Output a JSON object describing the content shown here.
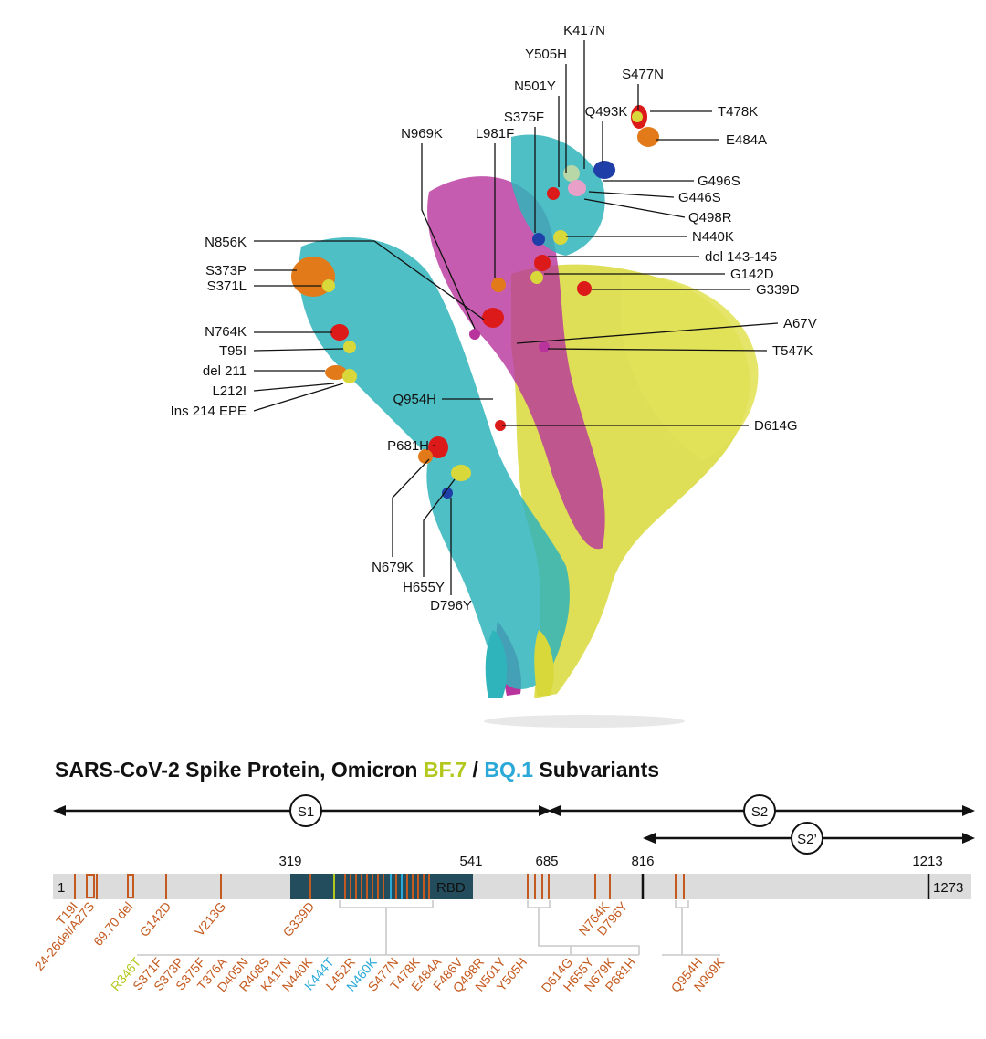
{
  "colors": {
    "bf7": "#b4c71c",
    "bq1": "#2aa8d8",
    "mutation": "#c45a1f",
    "domain_bar": "#dcdcdc",
    "rbd": "#234d5c",
    "cyan_chain": "#2fb4bb",
    "magenta_chain": "#b8339c",
    "yellow_chain": "#d8d83a",
    "red_site": "#dd1a1a",
    "orange_site": "#e27a1a",
    "blue_site": "#1f3ea8",
    "pink_site": "#e8a0c8"
  },
  "structure_labels": [
    "K417N",
    "Y505H",
    "S477N",
    "N501Y",
    "Q493K",
    "T478K",
    "S375F",
    "N969K",
    "L981F",
    "E484A",
    "G496S",
    "G446S",
    "Q498R",
    "N856K",
    "N440K",
    "S373P",
    "del 143-145",
    "S371L",
    "G142D",
    "G339D",
    "N764K",
    "A67V",
    "T95I",
    "T547K",
    "del 211",
    "L212I",
    "Q954H",
    "Ins 214 EPE",
    "D614G",
    "P681H",
    "N679K",
    "H655Y",
    "D796Y"
  ],
  "title": {
    "prefix": "SARS-CoV-2 Spike Protein, Omicron ",
    "bf7": "BF.7",
    "sep": " / ",
    "bq1": "BQ.1",
    "suffix": " Subvariants"
  },
  "domains": {
    "s1": "S1",
    "s2": "S2",
    "s2prime": "S2’",
    "rbd": "RBD"
  },
  "positions": [
    "1",
    "319",
    "541",
    "685",
    "816",
    "1213",
    "1273"
  ],
  "mutations_top": [
    "T19I",
    "24-26del/A27S",
    "69.70 del",
    "G142D",
    "V213G",
    "G339D",
    "N764K",
    "D796Y"
  ],
  "mutations_rbd": [
    {
      "text": "R346T",
      "lineage": "bf7"
    },
    {
      "text": "S371F",
      "lineage": "common"
    },
    {
      "text": "S373P",
      "lineage": "common"
    },
    {
      "text": "S375F",
      "lineage": "common"
    },
    {
      "text": "T376A",
      "lineage": "common"
    },
    {
      "text": "D405N",
      "lineage": "common"
    },
    {
      "text": "R408S",
      "lineage": "common"
    },
    {
      "text": "K417N",
      "lineage": "common"
    },
    {
      "text": "N440K",
      "lineage": "common"
    },
    {
      "text": "K444T",
      "lineage": "bq1"
    },
    {
      "text": "L452R",
      "lineage": "common"
    },
    {
      "text": "N460K",
      "lineage": "bq1"
    },
    {
      "text": "S477N",
      "lineage": "common"
    },
    {
      "text": "T478K",
      "lineage": "common"
    },
    {
      "text": "E484A",
      "lineage": "common"
    },
    {
      "text": "F486V",
      "lineage": "common"
    },
    {
      "text": "Q498R",
      "lineage": "common"
    },
    {
      "text": "N501Y",
      "lineage": "common"
    },
    {
      "text": "Y505H",
      "lineage": "common"
    }
  ],
  "mutations_furin": [
    "D614G",
    "H655Y",
    "N679K",
    "P681H"
  ],
  "mutations_s2": [
    "Q954H",
    "N969K"
  ]
}
